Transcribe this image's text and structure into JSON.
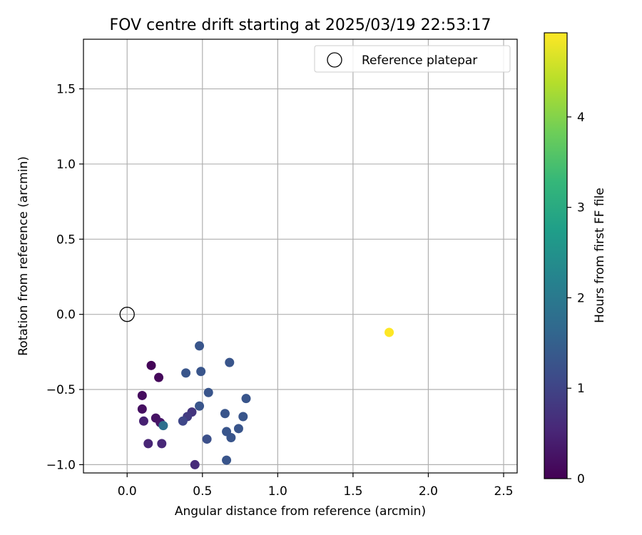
{
  "chart_data": {
    "type": "scatter",
    "title": "FOV centre drift starting at 2025/03/19 22:53:17",
    "xlabel": "Angular distance from reference (arcmin)",
    "ylabel": "Rotation from reference (arcmin)",
    "xlim": [
      -0.29,
      2.59
    ],
    "ylim": [
      -1.055,
      1.83
    ],
    "xticks": [
      0.0,
      0.5,
      1.0,
      1.5,
      2.0,
      2.5
    ],
    "yticks": [
      -1.0,
      -0.5,
      0.0,
      0.5,
      1.0,
      1.5
    ],
    "xtick_labels": [
      "0.0",
      "0.5",
      "1.0",
      "1.5",
      "2.0",
      "2.5"
    ],
    "ytick_labels": [
      "−1.0",
      "−0.5",
      "0.0",
      "0.5",
      "1.0",
      "1.5"
    ],
    "grid": true,
    "legend": {
      "position": "top-right",
      "entries": [
        "Reference platepar"
      ]
    },
    "reference_point": {
      "x": 0.0,
      "y": 0.0,
      "label": "Reference platepar"
    },
    "colorbar": {
      "label": "Hours from first FF file",
      "colormap": "viridis",
      "range": [
        0,
        4.93
      ],
      "ticks": [
        0,
        1,
        2,
        3,
        4
      ],
      "tick_labels": [
        "0",
        "1",
        "2",
        "3",
        "4"
      ]
    },
    "colormap_stops": [
      "#440154",
      "#482878",
      "#3e4a89",
      "#31688e",
      "#26828e",
      "#1f9e89",
      "#35b779",
      "#6ece58",
      "#b5de2b",
      "#fde725"
    ],
    "points": [
      {
        "x": 0.16,
        "y": -0.34,
        "hours": 0.05
      },
      {
        "x": 0.21,
        "y": -0.42,
        "hours": 0.1
      },
      {
        "x": 0.1,
        "y": -0.54,
        "hours": 0.15
      },
      {
        "x": 0.1,
        "y": -0.63,
        "hours": 0.2
      },
      {
        "x": 0.19,
        "y": -0.69,
        "hours": 0.25
      },
      {
        "x": 0.22,
        "y": -0.72,
        "hours": 0.3
      },
      {
        "x": 0.11,
        "y": -0.71,
        "hours": 0.45
      },
      {
        "x": 0.14,
        "y": -0.86,
        "hours": 0.5
      },
      {
        "x": 0.23,
        "y": -0.86,
        "hours": 0.55
      },
      {
        "x": 0.45,
        "y": -1.0,
        "hours": 0.6
      },
      {
        "x": 0.43,
        "y": -0.65,
        "hours": 0.75
      },
      {
        "x": 0.4,
        "y": -0.68,
        "hours": 0.85
      },
      {
        "x": 0.37,
        "y": -0.71,
        "hours": 1.05
      },
      {
        "x": 0.24,
        "y": -0.74,
        "hours": 1.8
      },
      {
        "x": 0.39,
        "y": -0.39,
        "hours": 1.3
      },
      {
        "x": 0.48,
        "y": -0.21,
        "hours": 1.3
      },
      {
        "x": 0.49,
        "y": -0.38,
        "hours": 1.3
      },
      {
        "x": 0.48,
        "y": -0.61,
        "hours": 1.3
      },
      {
        "x": 0.54,
        "y": -0.52,
        "hours": 1.3
      },
      {
        "x": 0.53,
        "y": -0.83,
        "hours": 1.2
      },
      {
        "x": 0.65,
        "y": -0.66,
        "hours": 1.3
      },
      {
        "x": 0.66,
        "y": -0.78,
        "hours": 1.3
      },
      {
        "x": 0.66,
        "y": -0.97,
        "hours": 1.3
      },
      {
        "x": 0.68,
        "y": -0.32,
        "hours": 1.3
      },
      {
        "x": 0.69,
        "y": -0.82,
        "hours": 1.3
      },
      {
        "x": 0.74,
        "y": -0.76,
        "hours": 1.3
      },
      {
        "x": 0.77,
        "y": -0.68,
        "hours": 1.3
      },
      {
        "x": 0.79,
        "y": -0.56,
        "hours": 1.3
      },
      {
        "x": 1.74,
        "y": -0.12,
        "hours": 4.93
      }
    ]
  }
}
